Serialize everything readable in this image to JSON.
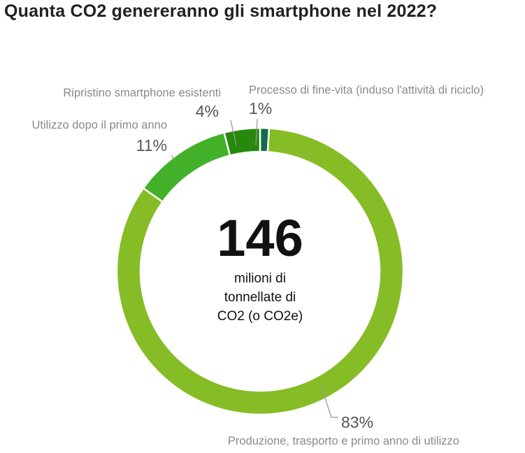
{
  "chart_data": {
    "type": "pie",
    "title": "Quanta CO2 genereranno gli smartphone nel 2022?",
    "center": {
      "value": "146",
      "unit_lines": [
        "milioni di",
        "tonnellate di",
        "CO2 (o CO2e)"
      ]
    },
    "categories": [
      "Processo di fine-vita (induso l'attività di riciclo)",
      "Produzione, trasporto e primo anno di utilizzo",
      "Utilizzo dopo il primo anno",
      "Ripristino smartphone esistenti"
    ],
    "values": [
      1,
      83,
      11,
      4
    ],
    "percent_labels": [
      "1%",
      "83%",
      "11%",
      "4%"
    ],
    "colors": [
      "#116b4c",
      "#86bc25",
      "#43b02a",
      "#26890d"
    ]
  }
}
